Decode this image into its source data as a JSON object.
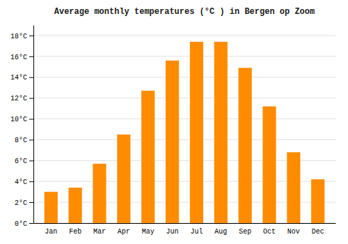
{
  "chart_data": {
    "type": "bar",
    "title": "Average monthly temperatures (°C ) in Bergen op Zoom",
    "categories": [
      "Jan",
      "Feb",
      "Mar",
      "Apr",
      "May",
      "Jun",
      "Jul",
      "Aug",
      "Sep",
      "Oct",
      "Nov",
      "Dec"
    ],
    "values": [
      3.0,
      3.4,
      5.7,
      8.5,
      12.7,
      15.6,
      17.4,
      17.4,
      14.9,
      11.2,
      6.8,
      4.2
    ],
    "color": "#FF8C00",
    "ylim": [
      0,
      19
    ],
    "yticks": [
      {
        "value": 0,
        "label": "0°C"
      },
      {
        "value": 2,
        "label": "2°C"
      },
      {
        "value": 4,
        "label": "4°C"
      },
      {
        "value": 6,
        "label": "6°C"
      },
      {
        "value": 8,
        "label": "8°C"
      },
      {
        "value": 10,
        "label": "10°C"
      },
      {
        "value": 12,
        "label": "12°C"
      },
      {
        "value": 14,
        "label": "14°C"
      },
      {
        "value": 16,
        "label": "16°C"
      },
      {
        "value": 18,
        "label": "18°C"
      }
    ],
    "grid": true
  }
}
